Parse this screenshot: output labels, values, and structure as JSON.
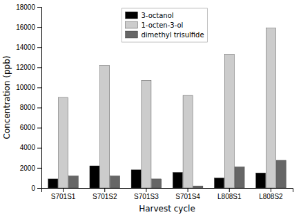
{
  "chart_data": {
    "type": "bar",
    "categories": [
      "S701S1",
      "S701S2",
      "S701S3",
      "S701S4",
      "L808S1",
      "L808S2"
    ],
    "series": [
      {
        "name": "3-octanol",
        "color": "#000000",
        "values": [
          900,
          2200,
          1800,
          1550,
          1000,
          1500
        ]
      },
      {
        "name": "1-octen-3-ol",
        "color": "#cccccc",
        "values": [
          9000,
          12200,
          10700,
          9200,
          13300,
          15900
        ]
      },
      {
        "name": "dimethyl trisulfide",
        "color": "#666666",
        "values": [
          1200,
          1200,
          900,
          200,
          2100,
          2750
        ]
      }
    ],
    "xlabel": "Harvest cycle",
    "ylabel": "Concentration (ppb)",
    "ylim": [
      0,
      18000
    ],
    "yticks": [
      0,
      2000,
      4000,
      6000,
      8000,
      10000,
      12000,
      14000,
      16000,
      18000
    ],
    "legend": "top"
  }
}
